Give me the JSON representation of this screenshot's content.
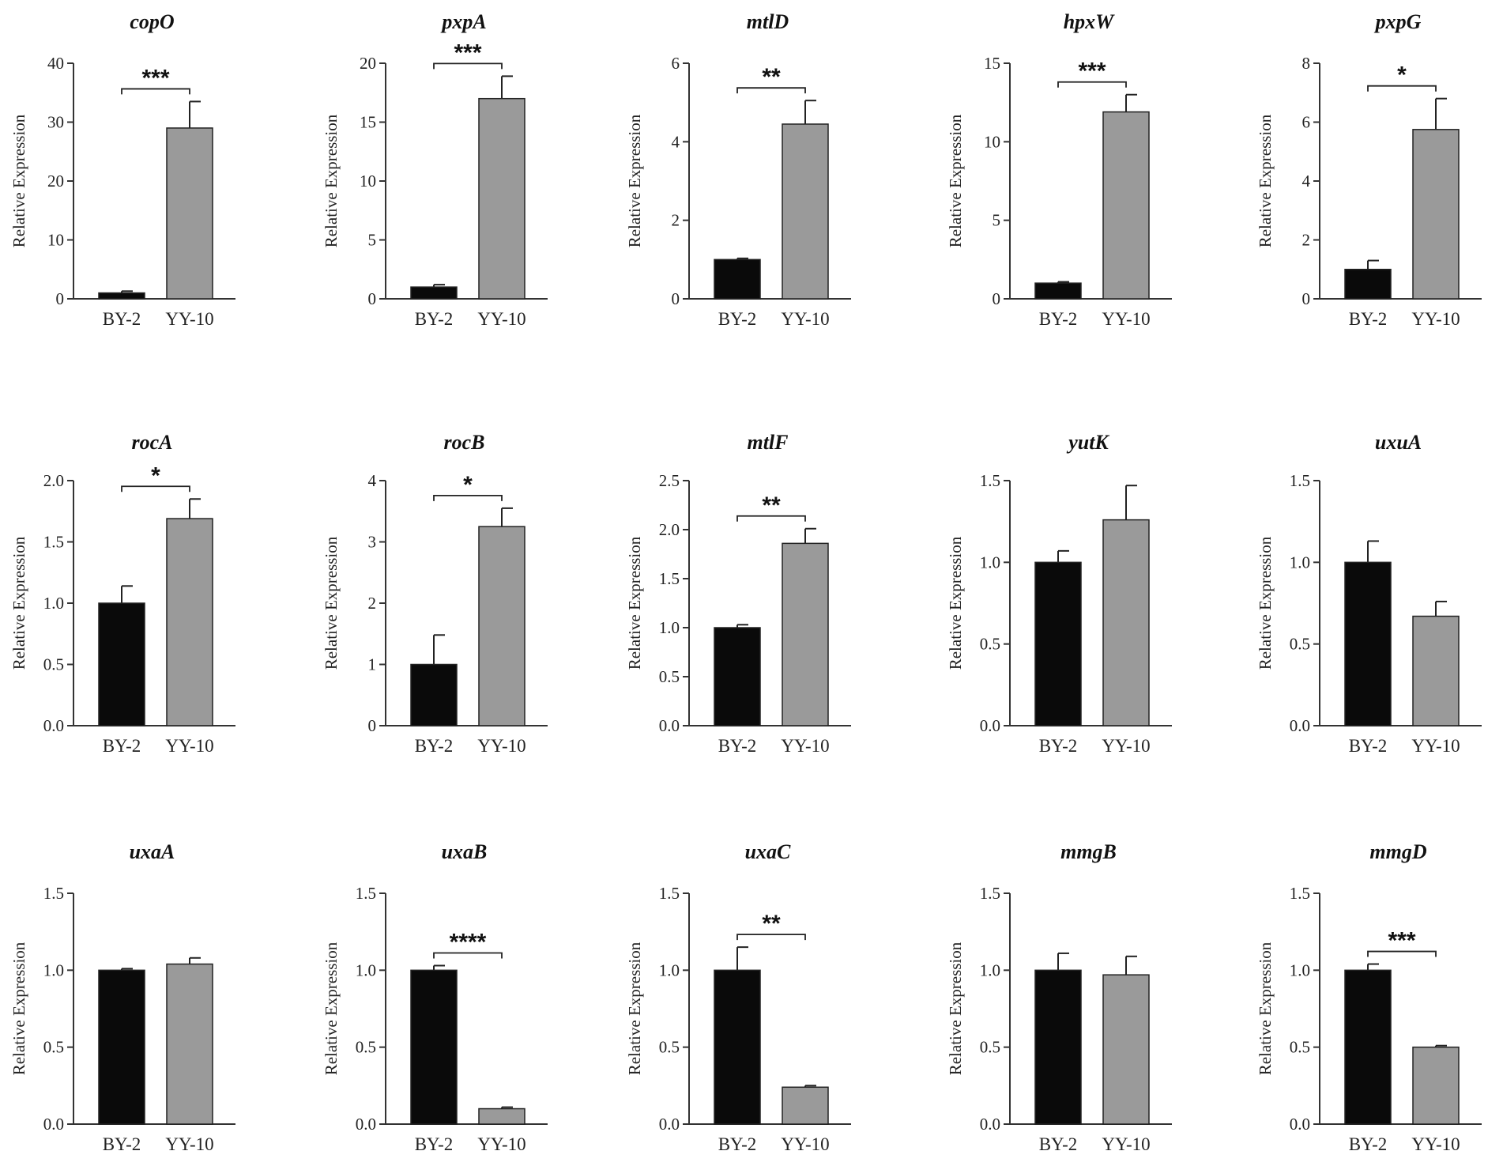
{
  "colors": {
    "control_bar": "#0a0a0a",
    "treatment_bar": "#9a9a9a",
    "axis": "#333333"
  },
  "chart_data": [
    {
      "type": "bar",
      "title": "copO",
      "ylabel": "Relative Expression",
      "categories": [
        "BY-2",
        "YY-10"
      ],
      "values": [
        1.0,
        29.0
      ],
      "errors": [
        0.3,
        4.5
      ],
      "ylim": [
        0,
        40
      ],
      "yticks": [
        "0",
        "10",
        "20",
        "30",
        "40"
      ],
      "significance": "***"
    },
    {
      "type": "bar",
      "title": "pxpA",
      "ylabel": "Relative Expression",
      "categories": [
        "BY-2",
        "YY-10"
      ],
      "values": [
        1.0,
        17.0
      ],
      "errors": [
        0.2,
        1.9
      ],
      "ylim": [
        0,
        20
      ],
      "yticks": [
        "0",
        "5",
        "10",
        "15",
        "20"
      ],
      "significance": "***"
    },
    {
      "type": "bar",
      "title": "mtlD",
      "ylabel": "Relative Expression",
      "categories": [
        "BY-2",
        "YY-10"
      ],
      "values": [
        1.0,
        4.45
      ],
      "errors": [
        0.03,
        0.6
      ],
      "ylim": [
        0,
        6
      ],
      "yticks": [
        "0",
        "2",
        "4",
        "6"
      ],
      "significance": "**"
    },
    {
      "type": "bar",
      "title": "hpxW",
      "ylabel": "Relative Expression",
      "categories": [
        "BY-2",
        "YY-10"
      ],
      "values": [
        1.0,
        11.9
      ],
      "errors": [
        0.08,
        1.1
      ],
      "ylim": [
        0,
        15
      ],
      "yticks": [
        "0",
        "5",
        "10",
        "15"
      ],
      "significance": "***"
    },
    {
      "type": "bar",
      "title": "pxpG",
      "ylabel": "Relative Expression",
      "categories": [
        "BY-2",
        "YY-10"
      ],
      "values": [
        1.0,
        5.75
      ],
      "errors": [
        0.3,
        1.05
      ],
      "ylim": [
        0,
        8
      ],
      "yticks": [
        "0",
        "2",
        "4",
        "6",
        "8"
      ],
      "significance": "*"
    },
    {
      "type": "bar",
      "title": "rocA",
      "ylabel": "Relative Expression",
      "categories": [
        "BY-2",
        "YY-10"
      ],
      "values": [
        1.0,
        1.69
      ],
      "errors": [
        0.14,
        0.16
      ],
      "ylim": [
        0,
        2.0
      ],
      "yticks": [
        "0.0",
        "0.5",
        "1.0",
        "1.5",
        "2.0"
      ],
      "significance": "*"
    },
    {
      "type": "bar",
      "title": "rocB",
      "ylabel": "Relative Expression",
      "categories": [
        "BY-2",
        "YY-10"
      ],
      "values": [
        1.0,
        3.25
      ],
      "errors": [
        0.48,
        0.3
      ],
      "ylim": [
        0,
        4
      ],
      "yticks": [
        "0",
        "1",
        "2",
        "3",
        "4"
      ],
      "significance": "*"
    },
    {
      "type": "bar",
      "title": "mtlF",
      "ylabel": "Relative Expression",
      "categories": [
        "BY-2",
        "YY-10"
      ],
      "values": [
        1.0,
        1.86
      ],
      "errors": [
        0.03,
        0.15
      ],
      "ylim": [
        0,
        2.5
      ],
      "yticks": [
        "0.0",
        "0.5",
        "1.0",
        "1.5",
        "2.0",
        "2.5"
      ],
      "significance": "**"
    },
    {
      "type": "bar",
      "title": "yutK",
      "ylabel": "Relative Expression",
      "categories": [
        "BY-2",
        "YY-10"
      ],
      "values": [
        1.0,
        1.26
      ],
      "errors": [
        0.07,
        0.21
      ],
      "ylim": [
        0,
        1.5
      ],
      "yticks": [
        "0.0",
        "0.5",
        "1.0",
        "1.5"
      ],
      "significance": ""
    },
    {
      "type": "bar",
      "title": "uxuA",
      "ylabel": "Relative Expression",
      "categories": [
        "BY-2",
        "YY-10"
      ],
      "values": [
        1.0,
        0.67
      ],
      "errors": [
        0.13,
        0.09
      ],
      "ylim": [
        0,
        1.5
      ],
      "yticks": [
        "0.0",
        "0.5",
        "1.0",
        "1.5"
      ],
      "significance": ""
    },
    {
      "type": "bar",
      "title": "uxaA",
      "ylabel": "Relative Expression",
      "categories": [
        "BY-2",
        "YY-10"
      ],
      "values": [
        1.0,
        1.04
      ],
      "errors": [
        0.01,
        0.04
      ],
      "ylim": [
        0,
        1.5
      ],
      "yticks": [
        "0.0",
        "0.5",
        "1.0",
        "1.5"
      ],
      "significance": ""
    },
    {
      "type": "bar",
      "title": "uxaB",
      "ylabel": "Relative Expression",
      "categories": [
        "BY-2",
        "YY-10"
      ],
      "values": [
        1.0,
        0.1
      ],
      "errors": [
        0.03,
        0.01
      ],
      "ylim": [
        0,
        1.5
      ],
      "yticks": [
        "0.0",
        "0.5",
        "1.0",
        "1.5"
      ],
      "significance": "****"
    },
    {
      "type": "bar",
      "title": "uxaC",
      "ylabel": "Relative Expression",
      "categories": [
        "BY-2",
        "YY-10"
      ],
      "values": [
        1.0,
        0.24
      ],
      "errors": [
        0.15,
        0.01
      ],
      "ylim": [
        0,
        1.5
      ],
      "yticks": [
        "0.0",
        "0.5",
        "1.0",
        "1.5"
      ],
      "significance": "**"
    },
    {
      "type": "bar",
      "title": "mmgB",
      "ylabel": "Relative Expression",
      "categories": [
        "BY-2",
        "YY-10"
      ],
      "values": [
        1.0,
        0.97
      ],
      "errors": [
        0.11,
        0.12
      ],
      "ylim": [
        0,
        1.5
      ],
      "yticks": [
        "0.0",
        "0.5",
        "1.0",
        "1.5"
      ],
      "significance": ""
    },
    {
      "type": "bar",
      "title": "mmgD",
      "ylabel": "Relative Expression",
      "categories": [
        "BY-2",
        "YY-10"
      ],
      "values": [
        1.0,
        0.5
      ],
      "errors": [
        0.04,
        0.01
      ],
      "ylim": [
        0,
        1.5
      ],
      "yticks": [
        "0.0",
        "0.5",
        "1.0",
        "1.5"
      ],
      "significance": "***"
    }
  ]
}
